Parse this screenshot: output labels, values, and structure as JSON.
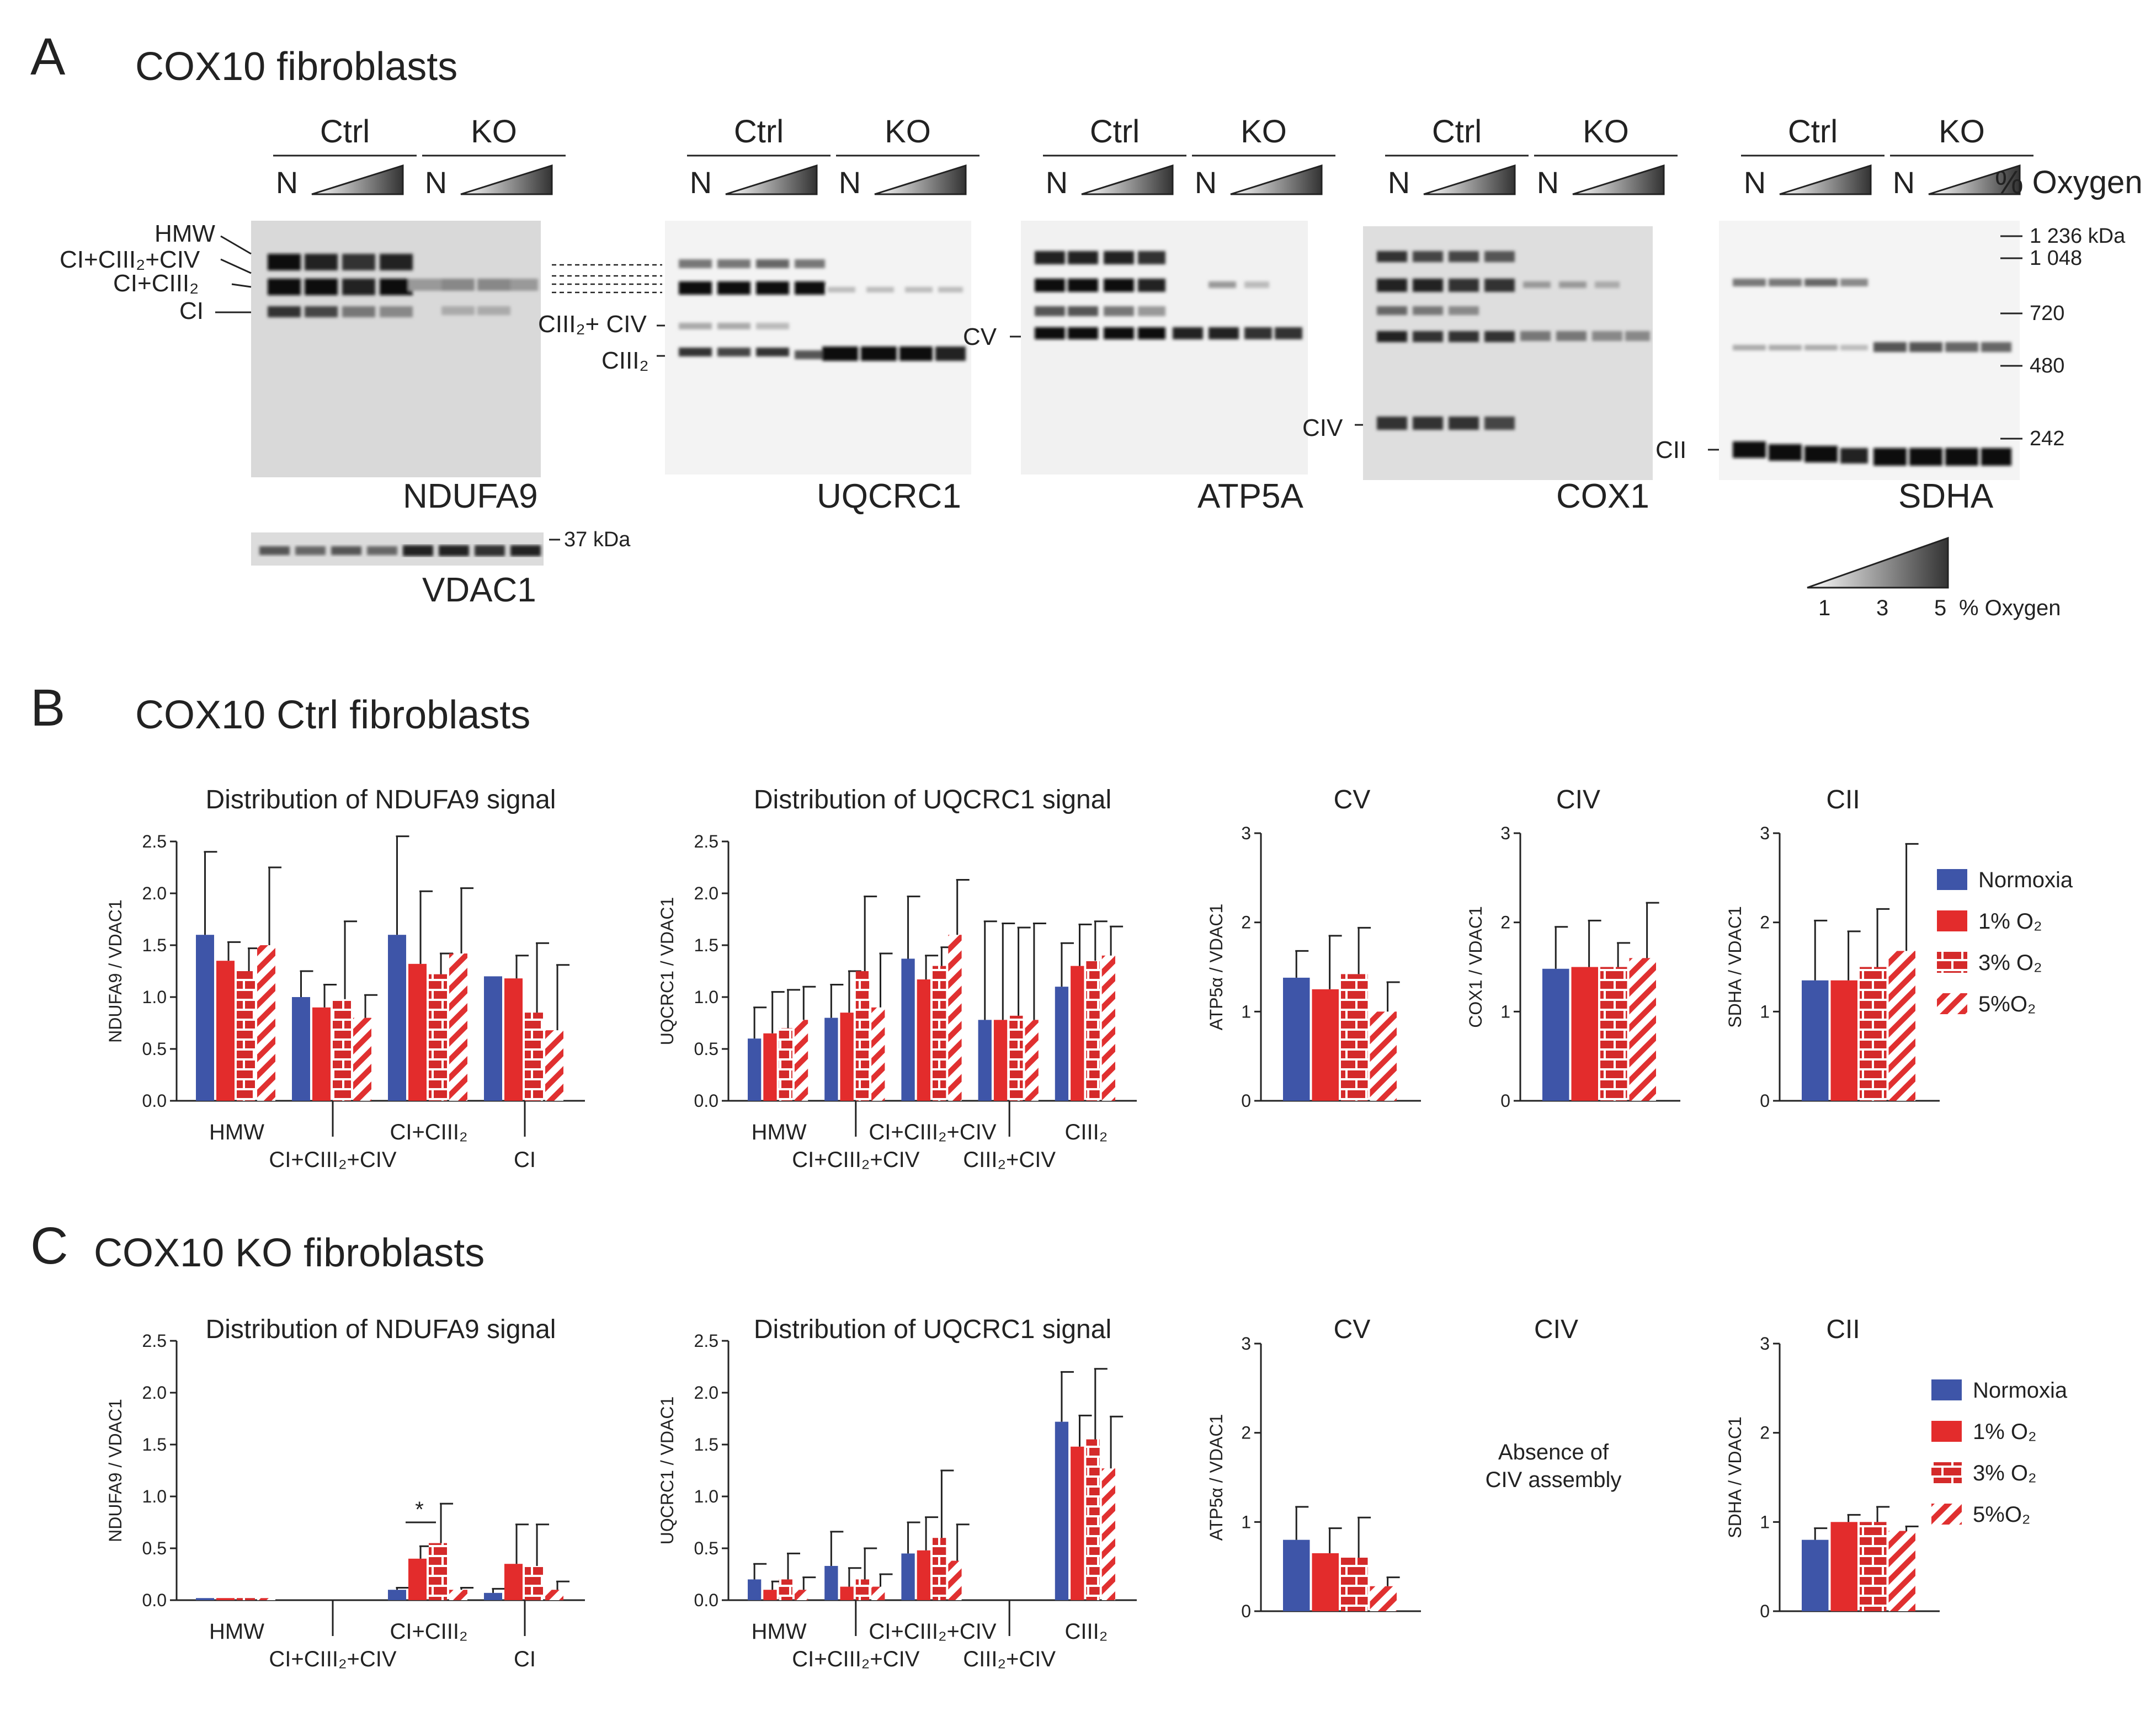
{
  "figure": {
    "panel_a": {
      "letter": "A",
      "title": "COX10 fibroblasts",
      "group_ctrl": "Ctrl",
      "group_ko": "KO",
      "lane_n": "N",
      "oxygen_label": "% Oxygen",
      "blots": [
        "NDUFA9",
        "UQCRC1",
        "ATP5A",
        "COX1",
        "SDHA"
      ],
      "loading_blot": "VDAC1",
      "loading_mw": "37 kDa",
      "band_labels_ndufa9": [
        "HMW",
        "CI+CIII₂+CIV",
        "CI+CIII₂",
        "CI"
      ],
      "band_label_ciii2_civ": "CIII₂+ CIV",
      "band_label_ciii2": "CIII₂",
      "band_label_cv": "CV",
      "band_label_civ": "CIV",
      "band_label_cii": "CII",
      "mw_markers": [
        "1 236 kDa",
        "1 048",
        "720",
        "480",
        "242"
      ],
      "gradient_legend": {
        "ticks": [
          "1",
          "3",
          "5"
        ],
        "label": "% Oxygen"
      }
    },
    "panel_b": {
      "letter": "B",
      "title": "COX10 Ctrl  fibroblasts"
    },
    "panel_c": {
      "letter": "C",
      "title": "COX10 KO fibroblasts"
    },
    "civ_absent_note": [
      "Absence of",
      "CIV assembly"
    ],
    "significance_mark": "*"
  },
  "legend": [
    "Normoxia",
    "1% O₂",
    "3% O₂",
    "5%O₂"
  ],
  "colors": {
    "normoxia": "#3e55a8",
    "red": "#e32c2c",
    "brick": "#d42a2a"
  },
  "chart_data": [
    {
      "id": "b1",
      "type": "bar",
      "title": "Distribution of NDUFA9 signal",
      "ylabel": "NDUFA9 / VDAC1",
      "ylim": [
        0,
        2.5
      ],
      "ticks": [
        "0.0",
        "0.5",
        "1.0",
        "1.5",
        "2.0",
        "2.5"
      ],
      "categories": [
        "HMW",
        "CI+CIII₂+CIV",
        "CI+CIII₂",
        "CI"
      ],
      "series": [
        {
          "name": "Normoxia",
          "values": [
            1.6,
            1.0,
            1.6,
            1.2
          ],
          "errors": [
            0.8,
            0.25,
            0.95,
            0.0
          ]
        },
        {
          "name": "1% O₂",
          "values": [
            1.35,
            0.9,
            1.32,
            1.18
          ],
          "errors": [
            0.18,
            0.22,
            0.7,
            0.22
          ]
        },
        {
          "name": "3% O₂",
          "values": [
            1.25,
            0.98,
            1.22,
            0.85
          ],
          "errors": [
            0.22,
            0.75,
            0.2,
            0.67
          ]
        },
        {
          "name": "5%O₂",
          "values": [
            1.5,
            0.8,
            1.42,
            0.68
          ],
          "errors": [
            0.75,
            0.22,
            0.63,
            0.63
          ]
        }
      ]
    },
    {
      "id": "b2",
      "type": "bar",
      "title": "Distribution of UQCRC1 signal",
      "ylabel": "UQCRC1 / VDAC1",
      "ylim": [
        0,
        2.5
      ],
      "ticks": [
        "0.0",
        "0.5",
        "1.0",
        "1.5",
        "2.0",
        "2.5"
      ],
      "categories": [
        "HMW",
        "CI+CIII₂+CIV",
        "CI+CIII₂+CIV",
        "CIII₂+CIV",
        "CIII₂"
      ],
      "series": [
        {
          "name": "Normoxia",
          "values": [
            0.6,
            0.8,
            1.37,
            0.78,
            1.1
          ],
          "errors": [
            0.3,
            0.32,
            0.6,
            0.95,
            0.42
          ]
        },
        {
          "name": "1% O₂",
          "values": [
            0.65,
            0.85,
            1.17,
            0.78,
            1.3
          ],
          "errors": [
            0.4,
            0.4,
            0.23,
            0.93,
            0.4
          ]
        },
        {
          "name": "3% O₂",
          "values": [
            0.7,
            1.25,
            1.3,
            0.82,
            1.35
          ],
          "errors": [
            0.37,
            0.72,
            0.18,
            0.85,
            0.38
          ]
        },
        {
          "name": "5%O₂",
          "values": [
            0.78,
            0.9,
            1.6,
            0.78,
            1.4
          ],
          "errors": [
            0.32,
            0.52,
            0.53,
            0.93,
            0.28
          ]
        }
      ]
    },
    {
      "id": "b3",
      "type": "bar",
      "title": "CV",
      "ylabel": "ATP5α / VDAC1",
      "ylim": [
        0,
        3
      ],
      "ticks": [
        "0",
        "1",
        "2",
        "3"
      ],
      "categories": [
        ""
      ],
      "series": [
        {
          "name": "Normoxia",
          "values": [
            1.38
          ],
          "errors": [
            0.3
          ]
        },
        {
          "name": "1% O₂",
          "values": [
            1.25
          ],
          "errors": [
            0.6
          ]
        },
        {
          "name": "3% O₂",
          "values": [
            1.42
          ],
          "errors": [
            0.52
          ]
        },
        {
          "name": "5%O₂",
          "values": [
            1.0
          ],
          "errors": [
            0.33
          ]
        }
      ]
    },
    {
      "id": "b4",
      "type": "bar",
      "title": "CIV",
      "ylabel": "COX1 / VDAC1",
      "ylim": [
        0,
        3
      ],
      "ticks": [
        "0",
        "1",
        "2",
        "3"
      ],
      "categories": [
        ""
      ],
      "series": [
        {
          "name": "Normoxia",
          "values": [
            1.48
          ],
          "errors": [
            0.47
          ]
        },
        {
          "name": "1% O₂",
          "values": [
            1.5
          ],
          "errors": [
            0.52
          ]
        },
        {
          "name": "3% O₂",
          "values": [
            1.5
          ],
          "errors": [
            0.27
          ]
        },
        {
          "name": "5%O₂",
          "values": [
            1.6
          ],
          "errors": [
            0.62
          ]
        }
      ]
    },
    {
      "id": "b5",
      "type": "bar",
      "title": "CII",
      "ylabel": "SDHA / VDAC1",
      "ylim": [
        0,
        3
      ],
      "ticks": [
        "0",
        "1",
        "2",
        "3"
      ],
      "categories": [
        ""
      ],
      "series": [
        {
          "name": "Normoxia",
          "values": [
            1.35
          ],
          "errors": [
            0.67
          ]
        },
        {
          "name": "1% O₂",
          "values": [
            1.35
          ],
          "errors": [
            0.55
          ]
        },
        {
          "name": "3% O₂",
          "values": [
            1.5
          ],
          "errors": [
            0.65
          ]
        },
        {
          "name": "5%O₂",
          "values": [
            1.68
          ],
          "errors": [
            1.2
          ]
        }
      ]
    },
    {
      "id": "c1",
      "type": "bar",
      "title": "Distribution of NDUFA9 signal",
      "ylabel": "NDUFA9 / VDAC1",
      "ylim": [
        0,
        2.5
      ],
      "ticks": [
        "0.0",
        "0.5",
        "1.0",
        "1.5",
        "2.0",
        "2.5"
      ],
      "categories": [
        "HMW",
        "CI+CIII₂+CIV",
        "CI+CIII₂",
        "CI"
      ],
      "series": [
        {
          "name": "Normoxia",
          "values": [
            0.02,
            0.0,
            0.1,
            0.07
          ],
          "errors": [
            0.0,
            0.0,
            0.02,
            0.04
          ]
        },
        {
          "name": "1% O₂",
          "values": [
            0.02,
            0.0,
            0.4,
            0.35
          ],
          "errors": [
            0.0,
            0.0,
            0.12,
            0.38
          ]
        },
        {
          "name": "3% O₂",
          "values": [
            0.02,
            0.0,
            0.55,
            0.33
          ],
          "errors": [
            0.0,
            0.0,
            0.38,
            0.4
          ]
        },
        {
          "name": "5%O₂",
          "values": [
            0.02,
            0.0,
            0.1,
            0.1
          ],
          "errors": [
            0.0,
            0.0,
            0.02,
            0.08
          ]
        }
      ]
    },
    {
      "id": "c2",
      "type": "bar",
      "title": "Distribution of UQCRC1 signal",
      "ylabel": "UQCRC1 / VDAC1",
      "ylim": [
        0,
        2.5
      ],
      "ticks": [
        "0.0",
        "0.5",
        "1.0",
        "1.5",
        "2.0",
        "2.5"
      ],
      "categories": [
        "HMW",
        "CI+CIII₂+CIV",
        "CI+CIII₂+CIV",
        "CIII₂+CIV",
        "CIII₂"
      ],
      "series": [
        {
          "name": "Normoxia",
          "values": [
            0.2,
            0.33,
            0.45,
            0.0,
            1.72
          ],
          "errors": [
            0.15,
            0.33,
            0.3,
            0.0,
            0.48
          ]
        },
        {
          "name": "1% O₂",
          "values": [
            0.1,
            0.13,
            0.48,
            0.0,
            1.48
          ],
          "errors": [
            0.08,
            0.18,
            0.32,
            0.0,
            0.3
          ]
        },
        {
          "name": "3% O₂",
          "values": [
            0.2,
            0.2,
            0.6,
            0.0,
            1.55
          ],
          "errors": [
            0.25,
            0.3,
            0.65,
            0.0,
            0.68
          ]
        },
        {
          "name": "5%O₂",
          "values": [
            0.1,
            0.13,
            0.38,
            0.0,
            1.27
          ],
          "errors": [
            0.12,
            0.12,
            0.35,
            0.0,
            0.5
          ]
        }
      ]
    },
    {
      "id": "c3",
      "type": "bar",
      "title": "CV",
      "ylabel": "ATP5α / VDAC1",
      "ylim": [
        0,
        3
      ],
      "ticks": [
        "0",
        "1",
        "2",
        "3"
      ],
      "categories": [
        ""
      ],
      "series": [
        {
          "name": "Normoxia",
          "values": [
            0.8
          ],
          "errors": [
            0.37
          ]
        },
        {
          "name": "1% O₂",
          "values": [
            0.65
          ],
          "errors": [
            0.28
          ]
        },
        {
          "name": "3% O₂",
          "values": [
            0.6
          ],
          "errors": [
            0.45
          ]
        },
        {
          "name": "5%O₂",
          "values": [
            0.28
          ],
          "errors": [
            0.1
          ]
        }
      ]
    },
    {
      "id": "c4",
      "type": "text",
      "title": "CIV"
    },
    {
      "id": "c5",
      "type": "bar",
      "title": "CII",
      "ylabel": "SDHA / VDAC1",
      "ylim": [
        0,
        3
      ],
      "ticks": [
        "0",
        "1",
        "2",
        "3"
      ],
      "categories": [
        ""
      ],
      "series": [
        {
          "name": "Normoxia",
          "values": [
            0.8
          ],
          "errors": [
            0.13
          ]
        },
        {
          "name": "1% O₂",
          "values": [
            1.0
          ],
          "errors": [
            0.08
          ]
        },
        {
          "name": "3% O₂",
          "values": [
            1.0
          ],
          "errors": [
            0.17
          ]
        },
        {
          "name": "5%O₂",
          "values": [
            0.9
          ],
          "errors": [
            0.05
          ]
        }
      ]
    }
  ]
}
